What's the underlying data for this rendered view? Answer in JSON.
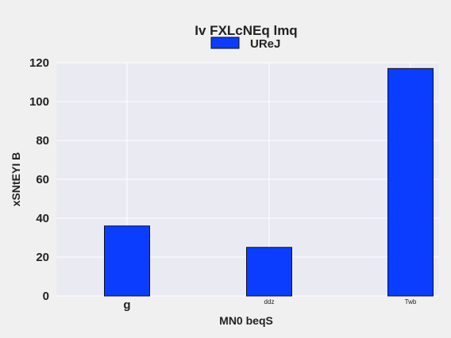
{
  "chart_data": {
    "type": "bar",
    "title": "Iv FXLcNEq lmq",
    "xlabel": "MN0 beqS",
    "ylabel": "xSNtEYI B",
    "categories": [
      "g",
      "ddz",
      "Twb"
    ],
    "series": [
      {
        "name": "UReJ",
        "values": [
          36,
          25,
          117
        ],
        "color": "#0a3dff"
      }
    ],
    "ylim": [
      0,
      120
    ],
    "yticks": [
      0,
      20,
      40,
      60,
      80,
      100,
      120
    ],
    "grid": true,
    "legend_position": "top-center",
    "colors": {
      "background": "#f0f0f0",
      "plot_area": "#eaeaf2",
      "grid": "#ffffff",
      "bar_edge": "#111111"
    }
  }
}
